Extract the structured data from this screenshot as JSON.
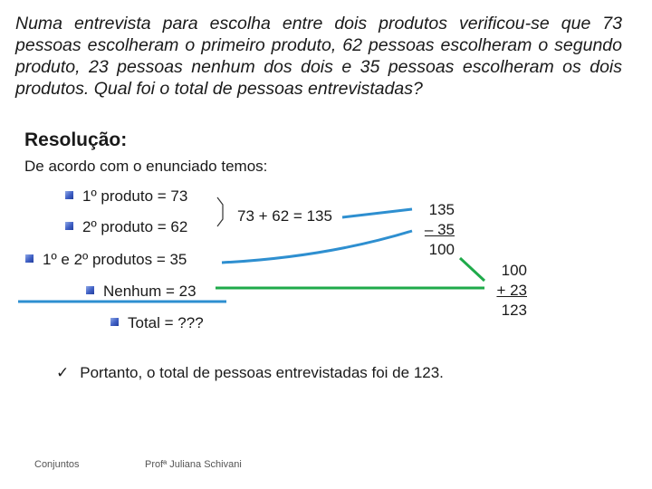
{
  "problem": "Numa entrevista para escolha entre dois produtos verificou-se que 73 pessoas escolheram o primeiro produto, 62 pessoas escolheram o segundo produto, 23 pessoas nenhum dos dois e 35 pessoas escolheram os dois produtos. Qual foi o total de pessoas entrevistadas?",
  "heading": "Resolução:",
  "intro": "De acordo com o enunciado temos:",
  "items": {
    "first": "1º produto = 73",
    "second": "2º produto = 62",
    "both": "1º e 2º produtos = 35",
    "none": "Nenhum = 23",
    "total": "Total = ???"
  },
  "calc": {
    "sum": "73 + 62 = 135",
    "sub_top": "135",
    "sub_minus": "– 35",
    "sub_result": "100",
    "add_top": "100",
    "add_plus": "+ 23",
    "add_result": "123"
  },
  "conclusion": {
    "check": "✓",
    "text": "Portanto, o total de pessoas entrevistadas foi de 123."
  },
  "footer": {
    "left": "Conjuntos",
    "right": "Profª Juliana Schivani"
  },
  "colors": {
    "blue_line": "#2e8fd0",
    "green_line": "#1faa4a",
    "bullet": "#3f5fc4"
  }
}
